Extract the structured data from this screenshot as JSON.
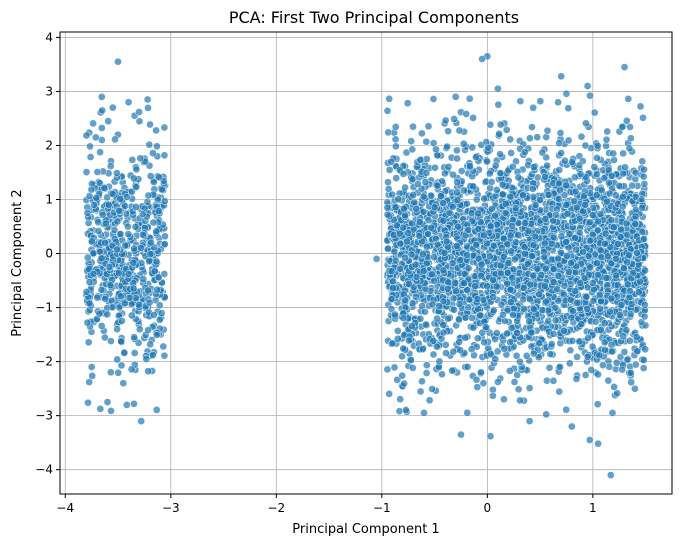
{
  "chart_data": {
    "type": "scatter",
    "title": "PCA: First Two Principal Components",
    "xlabel": "Principal Component 1",
    "ylabel": "Principal Component 2",
    "xlim": [
      -4.05,
      1.75
    ],
    "ylim": [
      -4.45,
      4.1
    ],
    "xticks": [
      -4,
      -3,
      -2,
      -1,
      0,
      1
    ],
    "yticks": [
      -4,
      -3,
      -2,
      -1,
      0,
      1,
      2,
      3,
      4
    ],
    "xtick_labels": [
      "−4",
      "−3",
      "−2",
      "−1",
      "0",
      "1"
    ],
    "ytick_labels": [
      "−4",
      "−3",
      "−2",
      "−1",
      "0",
      "1",
      "2",
      "3",
      "4"
    ],
    "grid": true,
    "marker_color": "#1f77b4",
    "marker_edge_color": "#ffffff",
    "clusters": [
      {
        "x_range": [
          -3.8,
          -3.05
        ],
        "y_center": 0.0,
        "y_spread": 1.0,
        "count": 650
      },
      {
        "x_range": [
          -0.95,
          1.5
        ],
        "y_center": -0.05,
        "y_spread": 1.0,
        "count": 3400
      }
    ],
    "points": [
      [
        -3.5,
        3.55
      ],
      [
        -3.4,
        2.8
      ],
      [
        -3.3,
        2.62
      ],
      [
        -3.22,
        2.85
      ],
      [
        -3.65,
        2.65
      ],
      [
        -3.55,
        2.7
      ],
      [
        -3.28,
        -3.1
      ],
      [
        -3.6,
        -2.75
      ],
      [
        -3.35,
        -2.78
      ],
      [
        -3.45,
        -2.4
      ],
      [
        -3.75,
        -2.1
      ],
      [
        -1.05,
        -0.1
      ],
      [
        0.0,
        3.65
      ],
      [
        -0.05,
        3.6
      ],
      [
        0.7,
        3.28
      ],
      [
        1.3,
        3.45
      ],
      [
        0.1,
        3.05
      ],
      [
        0.95,
        3.1
      ],
      [
        -0.3,
        2.9
      ],
      [
        1.17,
        -4.1
      ],
      [
        1.05,
        -3.52
      ],
      [
        0.97,
        -3.45
      ],
      [
        -0.25,
        -3.35
      ],
      [
        0.03,
        -3.38
      ],
      [
        -0.6,
        -2.95
      ],
      [
        0.4,
        -3.1
      ],
      [
        0.8,
        -3.2
      ]
    ]
  }
}
